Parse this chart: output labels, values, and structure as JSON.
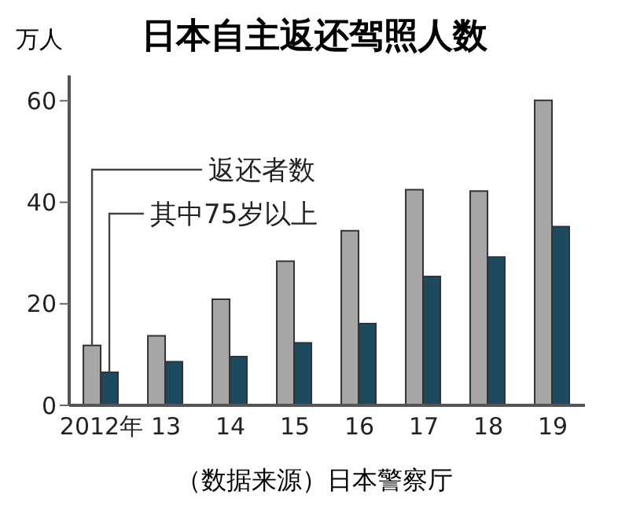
{
  "chart_data": {
    "type": "bar",
    "title": "日本自主返还驾照人数",
    "ylabel": "万人",
    "categories": [
      "2012年",
      "13",
      "14",
      "15",
      "16",
      "17",
      "18",
      "19"
    ],
    "series": [
      {
        "name": "返还者数",
        "color": "#a6a6a6",
        "values": [
          11.8,
          13.7,
          20.9,
          28.4,
          34.4,
          42.5,
          42.2,
          60.1
        ]
      },
      {
        "name": "其中75岁以上",
        "color": "#1d4a5e",
        "values": [
          6.5,
          8.6,
          9.6,
          12.3,
          16.1,
          25.4,
          29.2,
          35.2
        ]
      }
    ],
    "ylim": [
      0,
      65
    ],
    "yticks": [
      0,
      20,
      40,
      60
    ],
    "grid": false,
    "annotations": [
      "（数据来源）日本警察厅"
    ]
  }
}
